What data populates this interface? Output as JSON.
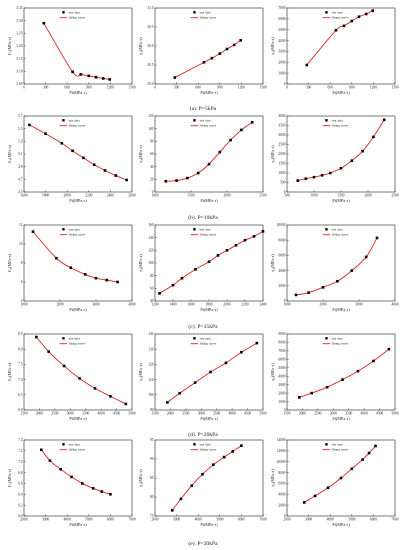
{
  "legend": {
    "points": "test data",
    "curve": "fitting curve"
  },
  "colors": {
    "points": "#000000",
    "curve": "#e02020",
    "frame": "#222222"
  },
  "rows": [
    {
      "caption": "(a). P=5kPa",
      "panels": [
        {
          "type": "scatter+line",
          "xlabel": "Pt(MPa·s)",
          "ylabel": "E₁(MPa·s)",
          "xlim": [
            0,
            1500
          ],
          "xticks": [
            0,
            300,
            600,
            900,
            1200,
            1500
          ],
          "ylim": [
            3.05,
            3.35
          ],
          "yticks": [
            3.05,
            3.1,
            3.15,
            3.2,
            3.25,
            3.3,
            3.35
          ],
          "ydecimals": 2,
          "x": [
            275,
            675,
            790,
            900,
            1000,
            1100,
            1190
          ],
          "y": [
            3.29,
            3.098,
            3.088,
            3.082,
            3.077,
            3.072,
            3.068
          ]
        },
        {
          "type": "scatter+line",
          "xlabel": "Pt(MPa·s)",
          "ylabel": "η₁(MPa·s)",
          "xlim": [
            0,
            1500
          ],
          "xticks": [
            0,
            300,
            600,
            900,
            1200,
            1500
          ],
          "ylim": [
            29,
            31
          ],
          "yticks": [
            29,
            29.5,
            30,
            30.5,
            31
          ],
          "ydecimals": 1,
          "x": [
            275,
            680,
            790,
            900,
            1000,
            1100,
            1190
          ],
          "y": [
            29.17,
            29.57,
            29.68,
            29.8,
            29.92,
            30.03,
            30.15
          ]
        },
        {
          "type": "scatter+line",
          "xlabel": "Pt(MPa·s)",
          "ylabel": "η₂(MPa·s)",
          "xlim": [
            0,
            1500
          ],
          "xticks": [
            0,
            300,
            600,
            900,
            1200,
            1500
          ],
          "ylim": [
            0,
            7000
          ],
          "yticks": [
            0,
            1000,
            2000,
            3000,
            4000,
            5000,
            6000,
            7000
          ],
          "ydecimals": 0,
          "x": [
            275,
            680,
            790,
            900,
            1000,
            1100,
            1190
          ],
          "y": [
            1750,
            4950,
            5350,
            5800,
            6200,
            6450,
            6750
          ]
        }
      ]
    },
    {
      "caption": "(b). P=10kPa",
      "panels": [
        {
          "type": "scatter+line",
          "xlabel": "Pt(MPa·s)",
          "ylabel": "E₁(MPa·s)",
          "xlim": [
            1600,
            2600
          ],
          "xticks": [
            1600,
            1800,
            2000,
            2200,
            2400,
            2600
          ],
          "ylim": [
            4.5,
            5.7
          ],
          "yticks": [
            4.5,
            4.7,
            4.9,
            5.1,
            5.3,
            5.5,
            5.7
          ],
          "ydecimals": 1,
          "x": [
            1650,
            1800,
            1950,
            2050,
            2150,
            2250,
            2350,
            2450,
            2550
          ],
          "y": [
            5.56,
            5.42,
            5.27,
            5.15,
            5.04,
            4.93,
            4.84,
            4.76,
            4.69
          ]
        },
        {
          "type": "scatter+line",
          "xlabel": "Pt(MPa·s)",
          "ylabel": "η₁(MPa·s)",
          "xlim": [
            1000,
            2500
          ],
          "xticks": [
            1000,
            1500,
            2000,
            2500
          ],
          "ylim": [
            0,
            120
          ],
          "yticks": [
            0,
            20,
            40,
            60,
            80,
            100,
            120
          ],
          "ydecimals": 0,
          "x": [
            1150,
            1300,
            1450,
            1600,
            1750,
            1900,
            2050,
            2200,
            2350
          ],
          "y": [
            17,
            18,
            22,
            30,
            44,
            63,
            82,
            98,
            110
          ]
        },
        {
          "type": "scatter+line",
          "xlabel": "Pt(MPa·s)",
          "ylabel": "η₂(MPa·s)",
          "xlim": [
            500,
            2500
          ],
          "xticks": [
            500,
            1000,
            1500,
            2000,
            2500
          ],
          "ylim": [
            0,
            4000
          ],
          "yticks": [
            0,
            500,
            1000,
            1500,
            2000,
            2500,
            3000,
            3500,
            4000
          ],
          "ydecimals": 0,
          "x": [
            700,
            850,
            1000,
            1150,
            1300,
            1500,
            1700,
            1900,
            2100,
            2300
          ],
          "y": [
            600,
            700,
            780,
            880,
            1000,
            1250,
            1650,
            2150,
            2900,
            3800
          ]
        }
      ]
    },
    {
      "caption": "(c). P=15kPa",
      "panels": [
        {
          "type": "scatter+line",
          "xlabel": "Pt(MPa·s)",
          "ylabel": "E₁(MPa·s)",
          "xlim": [
            1000,
            4000
          ],
          "xticks": [
            1000,
            2000,
            3000,
            4000
          ],
          "ylim": [
            4,
            12
          ],
          "yticks": [
            4,
            6,
            8,
            10,
            12
          ],
          "ydecimals": 0,
          "x": [
            1250,
            1900,
            2300,
            2700,
            3000,
            3300,
            3600
          ],
          "y": [
            11.3,
            8.5,
            7.5,
            6.8,
            6.4,
            6.2,
            6.0
          ]
        },
        {
          "type": "scatter+line",
          "xlabel": "Pt(MPa·s)",
          "ylabel": "η₁(MPa·s)",
          "xlim": [
            1200,
            2400
          ],
          "xticks": [
            1200,
            1400,
            1600,
            1800,
            2000,
            2200,
            2400
          ],
          "ylim": [
            40,
            160
          ],
          "yticks": [
            40,
            60,
            80,
            100,
            120,
            140,
            160
          ],
          "ydecimals": 0,
          "x": [
            1250,
            1400,
            1500,
            1650,
            1800,
            1900,
            2000,
            2100,
            2200,
            2300,
            2400
          ],
          "y": [
            52,
            65,
            76,
            90,
            102,
            112,
            120,
            128,
            136,
            142,
            150
          ]
        },
        {
          "type": "scatter+line",
          "xlabel": "Pt(MPa·s)",
          "ylabel": "η₂(MPa·s)",
          "xlim": [
            1000,
            4000
          ],
          "xticks": [
            1000,
            2000,
            3000,
            4000
          ],
          "ylim": [
            0,
            10000
          ],
          "yticks": [
            0,
            2000,
            4000,
            6000,
            8000,
            10000
          ],
          "ydecimals": 0,
          "x": [
            1250,
            1600,
            2000,
            2400,
            2800,
            3200,
            3500
          ],
          "y": [
            800,
            1100,
            1800,
            2600,
            4000,
            5800,
            8300
          ]
        }
      ]
    },
    {
      "caption": "(d). P=20kPa",
      "panels": [
        {
          "type": "scatter+line",
          "xlabel": "Pt(MPa·s)",
          "ylabel": "E₁(MPa·s)",
          "xlim": [
            1500,
            5000
          ],
          "xticks": [
            1500,
            2000,
            2500,
            3000,
            3500,
            4000,
            4500,
            5000
          ],
          "ylim": [
            6,
            8.5
          ],
          "yticks": [
            6,
            6.5,
            7,
            7.5,
            8,
            8.5
          ],
          "ydecimals": 1,
          "x": [
            1900,
            2300,
            2800,
            3300,
            3800,
            4300,
            4800
          ],
          "y": [
            8.4,
            7.92,
            7.45,
            7.04,
            6.71,
            6.45,
            6.2
          ]
        },
        {
          "type": "scatter+line",
          "xlabel": "Pt(MPa·s)",
          "ylabel": "η₁(MPa·s)",
          "xlim": [
            1500,
            5000
          ],
          "xticks": [
            1500,
            2000,
            2500,
            3000,
            3500,
            4000,
            4500,
            5000
          ],
          "ylim": [
            90,
            140
          ],
          "yticks": [
            90,
            100,
            110,
            120,
            130,
            140
          ],
          "ydecimals": 0,
          "x": [
            1900,
            2300,
            2800,
            3300,
            3800,
            4300,
            4800
          ],
          "y": [
            95,
            101,
            108,
            115,
            121,
            128,
            134
          ]
        },
        {
          "type": "scatter+line",
          "xlabel": "Pt(MPa·s)",
          "ylabel": "η₂(MPa·s)",
          "xlim": [
            1500,
            5000
          ],
          "xticks": [
            1500,
            2000,
            2500,
            3000,
            3500,
            4000,
            4500,
            5000
          ],
          "ylim": [
            0,
            9000
          ],
          "yticks": [
            0,
            1000,
            2000,
            3000,
            4000,
            5000,
            6000,
            7000,
            8000,
            9000
          ],
          "ydecimals": 0,
          "x": [
            1900,
            2300,
            2800,
            3300,
            3800,
            4300,
            4800
          ],
          "y": [
            1500,
            2000,
            2700,
            3600,
            4600,
            5800,
            7200
          ]
        }
      ]
    },
    {
      "caption": "(e). P=20kPa",
      "panels": [
        {
          "type": "scatter+line",
          "xlabel": "Pt(MPa·s)",
          "ylabel": "E₁(MPa·s)",
          "xlim": [
            2000,
            7000
          ],
          "xticks": [
            2000,
            3000,
            4000,
            5000,
            6000,
            7000
          ],
          "ylim": [
            6.0,
            7.4
          ],
          "yticks": [
            6.0,
            6.2,
            6.4,
            6.6,
            6.8,
            7.0,
            7.2,
            7.4
          ],
          "ydecimals": 1,
          "x": [
            2800,
            3200,
            3700,
            4200,
            4700,
            5200,
            5600,
            6000
          ],
          "y": [
            7.22,
            7.02,
            6.86,
            6.72,
            6.6,
            6.51,
            6.45,
            6.4
          ]
        },
        {
          "type": "scatter+line",
          "xlabel": "Pt(MPa·s)",
          "ylabel": "η₁(MPa·s)",
          "xlim": [
            2000,
            7000
          ],
          "xticks": [
            2000,
            3000,
            4000,
            5000,
            6000,
            7000
          ],
          "ylim": [
            75,
            95
          ],
          "yticks": [
            75,
            80,
            85,
            90,
            95
          ],
          "ydecimals": 0,
          "x": [
            2800,
            3200,
            3700,
            4200,
            4700,
            5200,
            5600,
            6000
          ],
          "y": [
            76.5,
            79.5,
            83,
            86,
            88.5,
            90.5,
            92,
            93.5
          ]
        },
        {
          "type": "scatter+line",
          "xlabel": "Pt(MPa·s)",
          "ylabel": "η₂(MPa·s)",
          "xlim": [
            2000,
            7000
          ],
          "xticks": [
            2000,
            3000,
            4000,
            5000,
            6000,
            7000
          ],
          "ylim": [
            0,
            14000
          ],
          "yticks": [
            0,
            2000,
            4000,
            6000,
            8000,
            10000,
            12000,
            14000
          ],
          "ydecimals": 0,
          "x": [
            2800,
            3300,
            3900,
            4500,
            5000,
            5500,
            5800,
            6100
          ],
          "y": [
            2500,
            3700,
            5200,
            7000,
            8700,
            10400,
            11600,
            12900
          ]
        }
      ]
    }
  ]
}
